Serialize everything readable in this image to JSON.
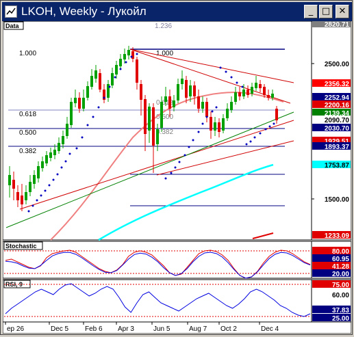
{
  "window": {
    "title": "LKOH, Weekly - Лукойл",
    "minimize_glyph": "_",
    "maximize_glyph": "□",
    "close_glyph": "✕"
  },
  "panels": {
    "price": {
      "label": "Data"
    },
    "stochastic": {
      "label": "Stochastic"
    },
    "rsi": {
      "label": "RSI, 9"
    }
  },
  "fibonacci": {
    "top_label": "1.236",
    "left_labels": [
      "1.000",
      "0.618",
      "0.500",
      "0.382"
    ],
    "right_labels": [
      "1.000",
      "0.618",
      "0.500",
      "0.382"
    ]
  },
  "price_axis": {
    "ticks": [
      "2820.71",
      "2500.00",
      "2356.32",
      "2252.94",
      "2200.16",
      "2139.34",
      "2090.70",
      "2030.70",
      "1929.51",
      "1893.37",
      "1753.87",
      "1500.00",
      "1233.09"
    ],
    "highlighted": {
      "2820.71": "#808080",
      "2356.32": "#ff0000",
      "2252.94": "#000080",
      "2200.16": "#e00000",
      "2139.34": "#008000",
      "2090.70": "#ffffff",
      "2030.70": "#000080",
      "1929.51": "#e00000",
      "1893.37": "#000080",
      "1753.87": "#00ffff",
      "1233.09": "#e00000"
    }
  },
  "stoch_axis": {
    "ticks": [
      "80.00",
      "60.95",
      "41.28",
      "20.00"
    ]
  },
  "rsi_axis": {
    "ticks": [
      "75.00",
      "60.00",
      "37.83",
      "25.00"
    ]
  },
  "time_axis": {
    "labels": [
      "ep 26",
      "Dec 5",
      "Feb 6",
      "Apr 3",
      "Jun 5",
      "Aug 7",
      "Oct 2",
      "Dec 4"
    ]
  },
  "colors": {
    "up": "#00a000",
    "down": "#e00000",
    "fib": "#000080",
    "ma_pink": "#f08080",
    "ma_cyan": "#00ffff"
  }
}
